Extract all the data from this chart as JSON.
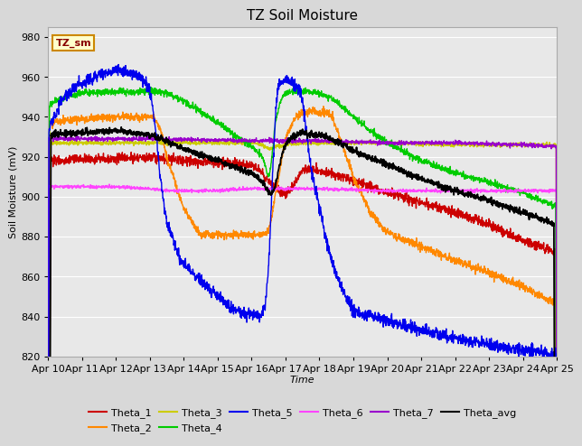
{
  "title": "TZ Soil Moisture",
  "xlabel": "Time",
  "ylabel": "Soil Moisture (mV)",
  "ylim": [
    820,
    985
  ],
  "xlim": [
    0,
    15
  ],
  "x_tick_labels": [
    "Apr 10",
    "Apr 11",
    "Apr 12",
    "Apr 13",
    "Apr 14",
    "Apr 15",
    "Apr 16",
    "Apr 17",
    "Apr 18",
    "Apr 19",
    "Apr 20",
    "Apr 21",
    "Apr 22",
    "Apr 23",
    "Apr 24",
    "Apr 25"
  ],
  "yticks": [
    820,
    840,
    860,
    880,
    900,
    920,
    940,
    960,
    980
  ],
  "bg_color": "#e8e8e8",
  "grid_color": "#ffffff",
  "series_colors": {
    "Theta_1": "#cc0000",
    "Theta_2": "#ff8800",
    "Theta_3": "#cccc00",
    "Theta_4": "#00cc00",
    "Theta_5": "#0000ee",
    "Theta_6": "#ff44ff",
    "Theta_7": "#9900cc",
    "Theta_avg": "#000000"
  },
  "legend_label": "TZ_sm",
  "title_fontsize": 11,
  "axis_fontsize": 8,
  "fig_width": 6.4,
  "fig_height": 4.8,
  "dpi": 100
}
